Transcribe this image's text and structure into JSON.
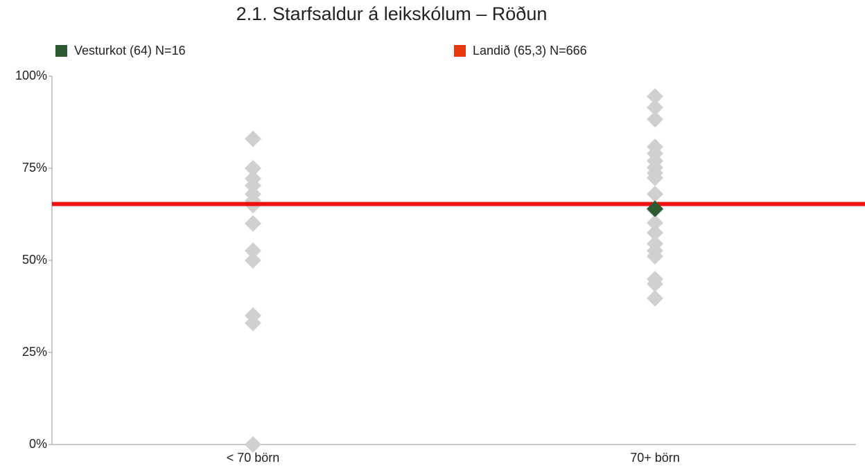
{
  "chart_data": {
    "type": "scatter",
    "title": "2.1. Starfsaldur á leikskólum – Röðun",
    "categories": [
      "< 70 börn",
      "70+ börn"
    ],
    "ylim": [
      0,
      100
    ],
    "yticks": [
      {
        "value": 0,
        "label": "0%"
      },
      {
        "value": 25,
        "label": "25%"
      },
      {
        "value": 50,
        "label": "50%"
      },
      {
        "value": 75,
        "label": "75%"
      },
      {
        "value": 100,
        "label": "100%"
      }
    ],
    "series": [
      {
        "color": "#d0d0d0",
        "values": [
          [
            83,
            75,
            72.2,
            70.3,
            68,
            66.2,
            65,
            60,
            52.6,
            50,
            35,
            33,
            0
          ],
          [
            94.5,
            91.5,
            88.3,
            80.8,
            79,
            77,
            75.2,
            73.7,
            72.4,
            68,
            63.7,
            60.2,
            57.5,
            54.5,
            52.6,
            51.1,
            44.9,
            43.6,
            39.7
          ]
        ]
      },
      {
        "name": "Vesturkot (64) N=16",
        "color": "#2e5a32",
        "values": [
          null,
          64
        ]
      },
      {
        "name": "Landið (65,3) N=666",
        "color": "#e8380d",
        "line_color": "#ee1111",
        "type": "hline",
        "value": 65.3
      }
    ]
  }
}
